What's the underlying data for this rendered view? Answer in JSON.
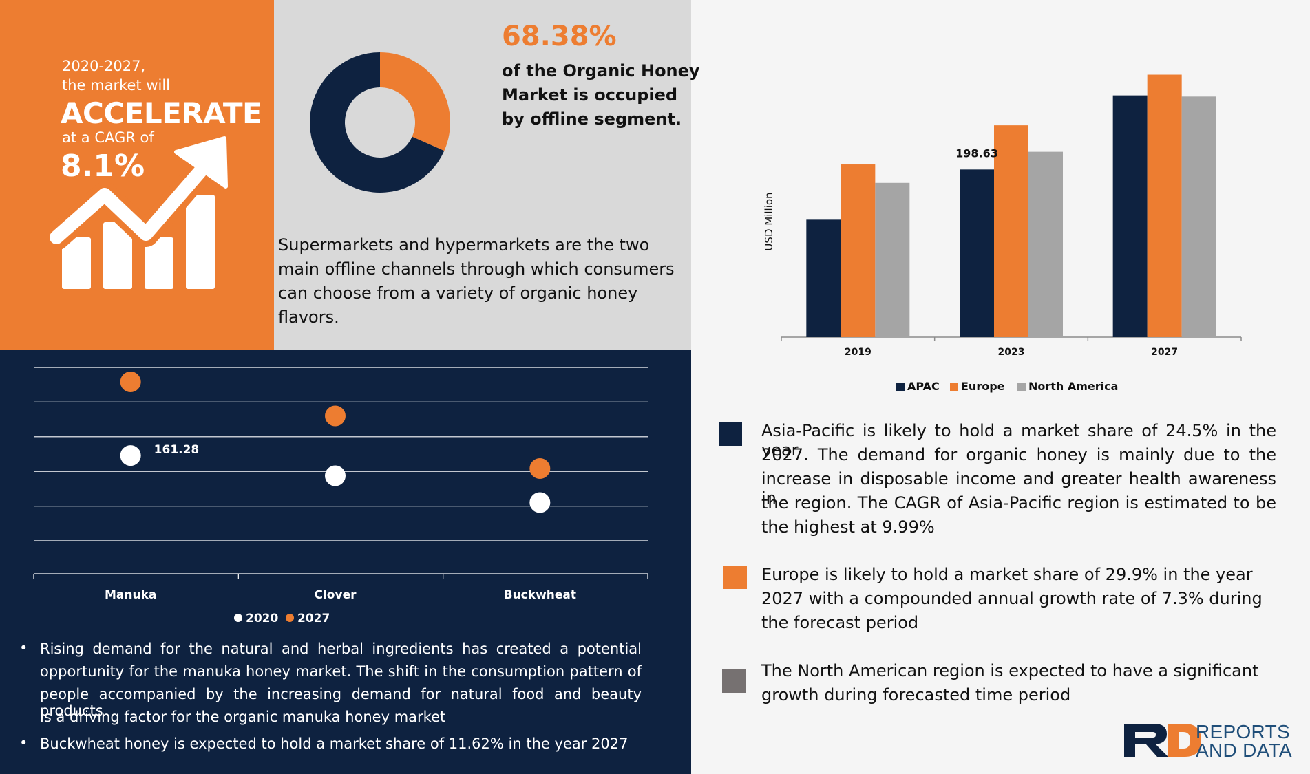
{
  "colors": {
    "orange": "#ED7D31",
    "navy": "#0E2240",
    "gray_bar": "#A5A5A5",
    "gray_panel": "#D9D9D9",
    "na_swatch": "#767171"
  },
  "cagr": {
    "line1": "2020-2027,",
    "line2": "the market will",
    "headline": "ACCELERATE",
    "line3": "at a CAGR of",
    "value": "8.1%"
  },
  "offline_share": {
    "percent": "68.38%",
    "line1": "of the Organic Honey",
    "line2": "Market is occupied",
    "line3": "by offline segment."
  },
  "channels_text": [
    "Supermarkets and hypermarkets are the two",
    "main offline channels through which consumers",
    "can choose from a variety of organic honey",
    "flavors."
  ],
  "bullets": [
    {
      "lines": [
        "Rising demand for the natural and herbal ingredients has created a potential",
        "opportunity for the manuka honey market. The shift in the consumption pattern of",
        "people accompanied by the increasing demand for natural food and beauty products",
        "is a driving factor for the organic manuka honey market"
      ]
    },
    {
      "lines": [
        "Buckwheat honey is expected to hold a market share of 11.62% in the year 2027"
      ]
    }
  ],
  "region_notes": [
    {
      "color": "#0E2240",
      "lines": [
        "Asia-Pacific is likely to hold a market share of 24.5% in the year",
        "2027. The demand for organic honey is mainly due to the",
        "increase in disposable income and greater health awareness in",
        "the region. The CAGR of Asia-Pacific region is estimated to be",
        "the highest at 9.99%"
      ]
    },
    {
      "color": "#ED7D31",
      "lines": [
        "Europe is likely to hold a market share of 29.9% in the year",
        "2027 with a compounded annual growth rate of 7.3% during",
        "the forecast period"
      ]
    },
    {
      "color": "#767171",
      "lines": [
        "The North American region is expected to have a significant",
        "growth during forecasted time period"
      ]
    }
  ],
  "logo": {
    "mark": "RD",
    "line1": "REPORTS",
    "line2": "AND DATA"
  },
  "chart_data": [
    {
      "type": "pie",
      "subtype": "donut",
      "values": [
        31.62,
        68.38
      ],
      "labels": [
        "",
        "offline"
      ],
      "colors": [
        "#ED7D31",
        "#0E2240"
      ]
    },
    {
      "type": "scatter",
      "subtype": "dot plot",
      "categories": [
        "Manuka",
        "Clover",
        "Buckwheat"
      ],
      "series": [
        {
          "name": "2020",
          "values": [
            161.28,
            151.5,
            138.5
          ],
          "color": "#FFFFFF"
        },
        {
          "name": "2027",
          "values": [
            197,
            180.5,
            155
          ],
          "color": "#ED7D31"
        }
      ],
      "data_labels": [
        {
          "series": "2020",
          "category": "Manuka",
          "text": "161.28"
        }
      ],
      "ylim": [
        104,
        204
      ],
      "grid": true,
      "legend": "bottom"
    },
    {
      "type": "bar",
      "categories": [
        "2019",
        "2023",
        "2027"
      ],
      "series": [
        {
          "name": "APAC",
          "values": [
            155,
            198.63,
            263
          ],
          "color": "#0E2240"
        },
        {
          "name": "Europe",
          "values": [
            203,
            237,
            281
          ],
          "color": "#ED7D31"
        },
        {
          "name": "North America",
          "values": [
            187,
            214,
            262
          ],
          "color": "#A5A5A5"
        }
      ],
      "data_labels": [
        {
          "series": "APAC",
          "category": "2023",
          "text": "198.63"
        }
      ],
      "ylabel": "USD Million",
      "ylim": [
        53,
        310
      ],
      "legend": "bottom"
    }
  ]
}
